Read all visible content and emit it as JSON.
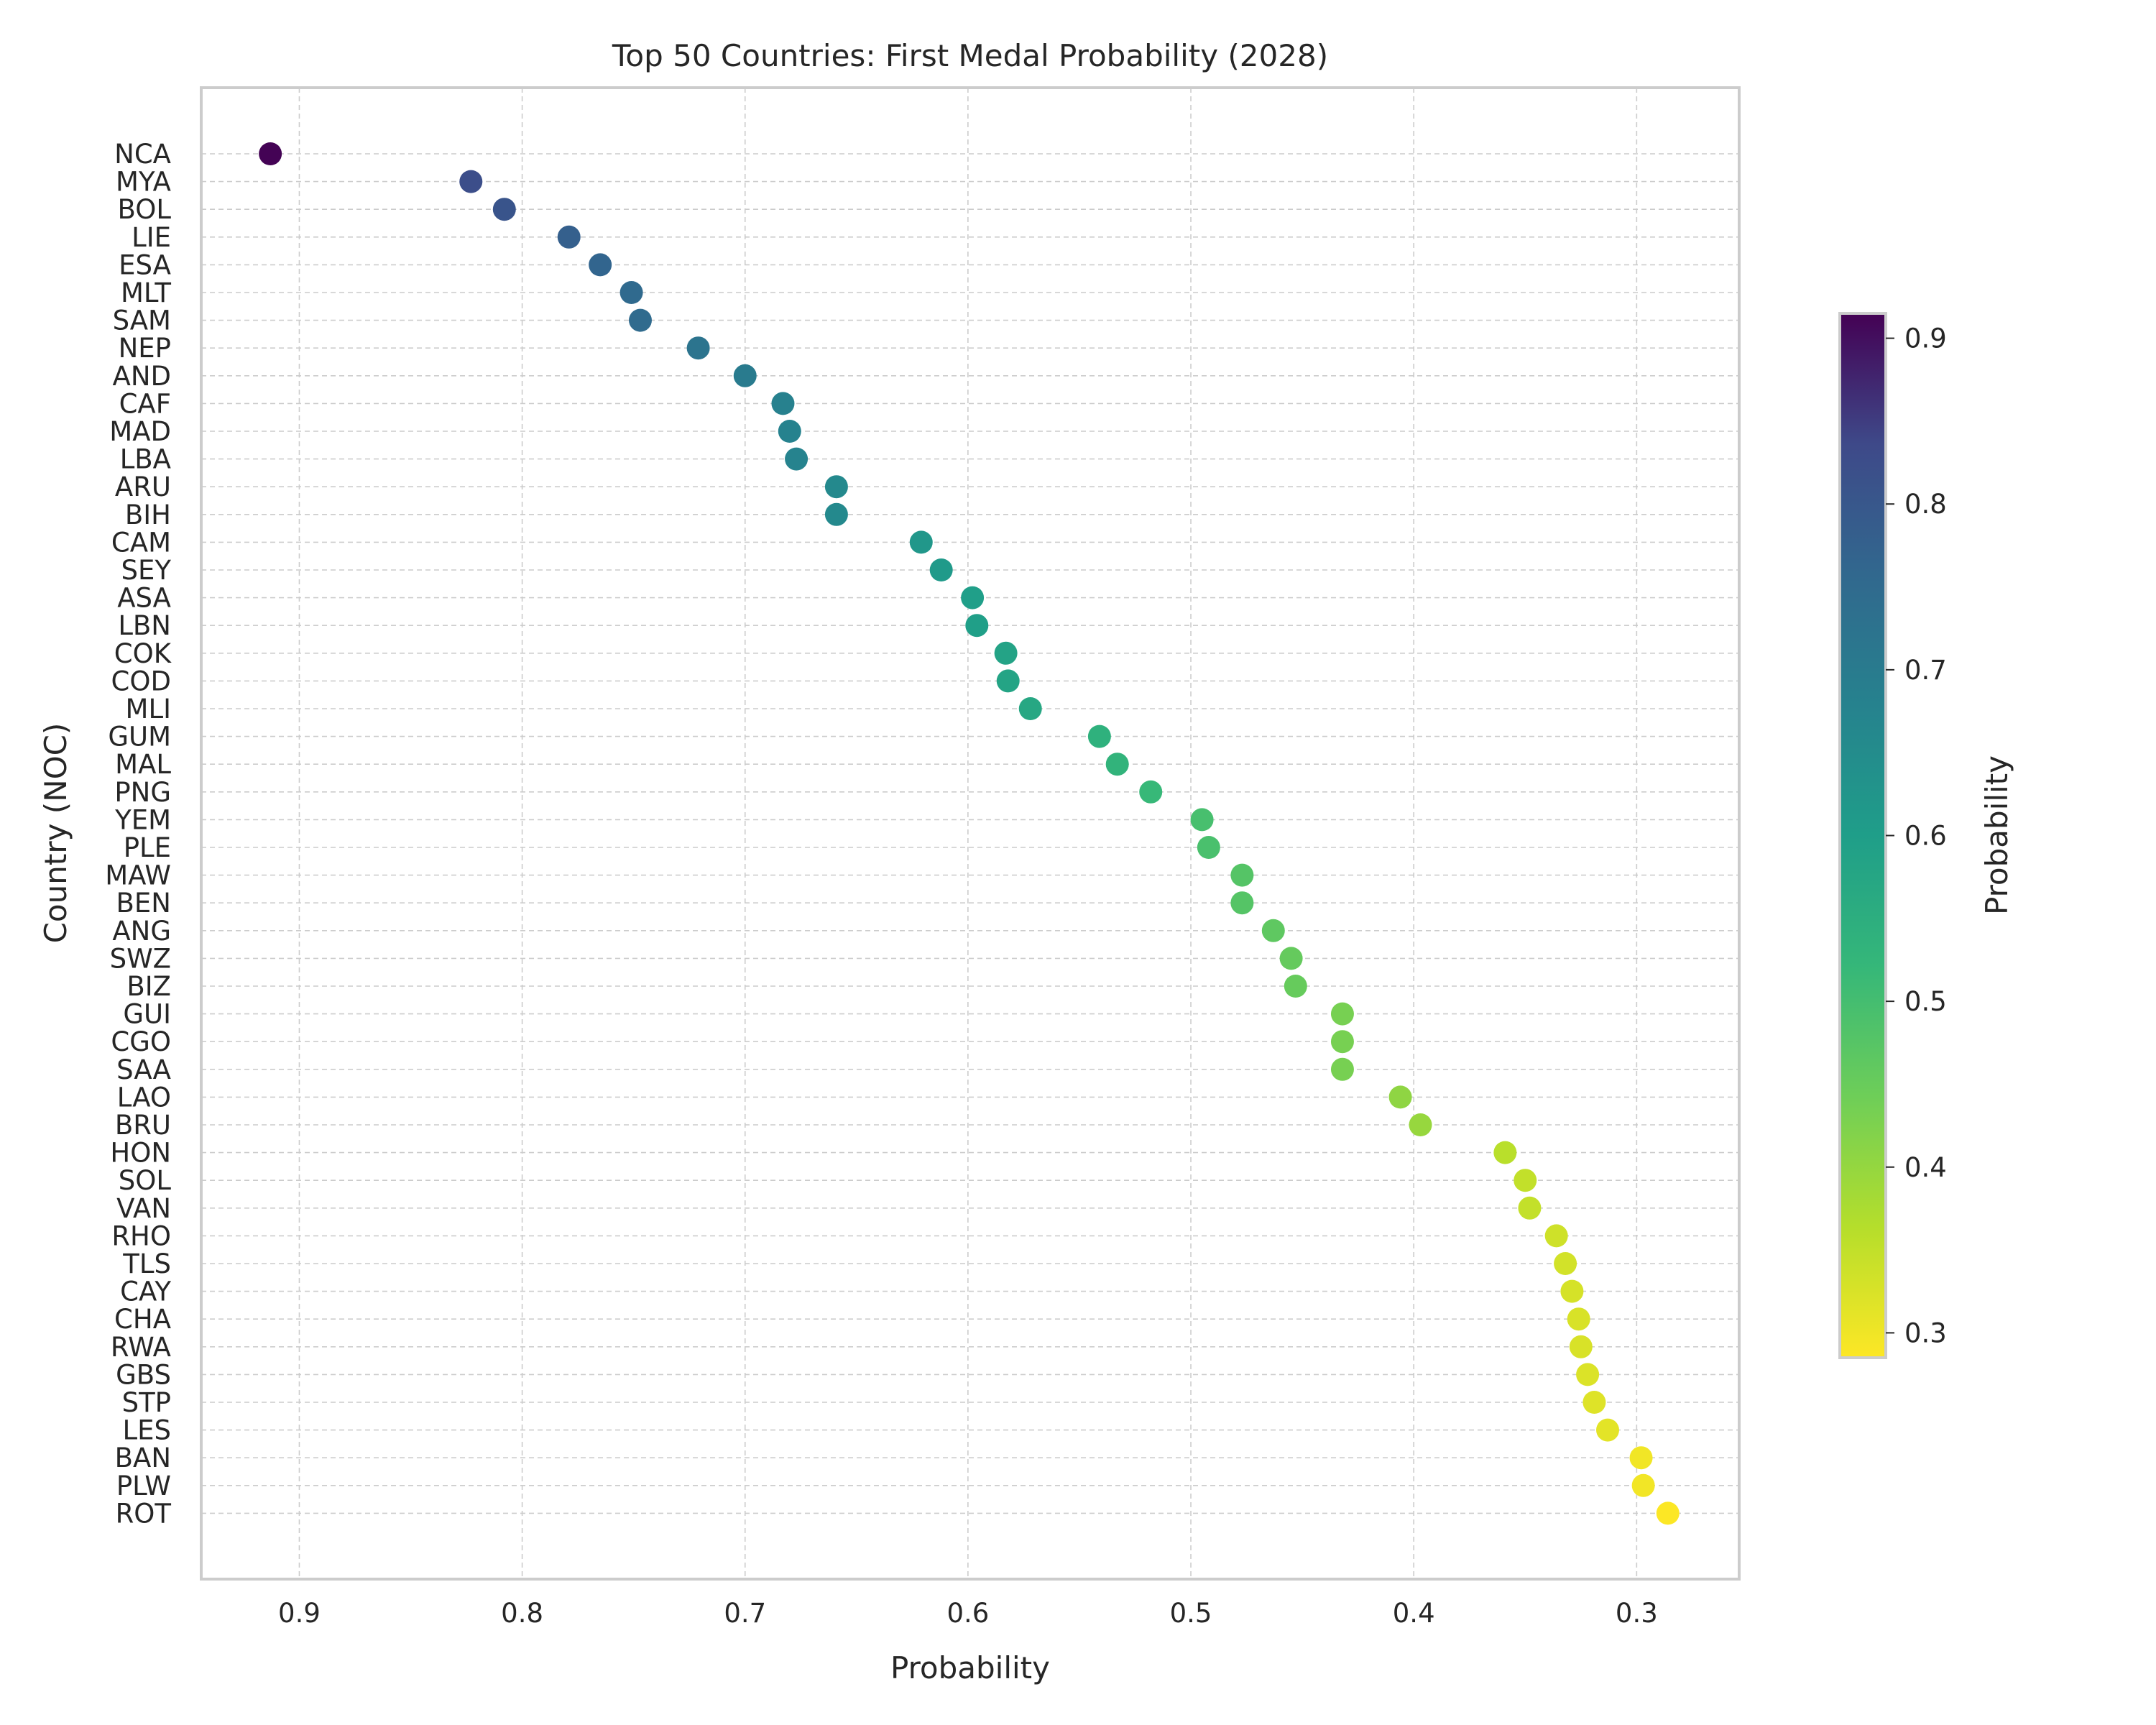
{
  "chart_data": {
    "type": "scatter",
    "title": "Top 50 Countries: First Medal Probability (2028)",
    "xlabel": "Probability",
    "ylabel": "Country (NOC)",
    "xlim": [
      0.944,
      0.254
    ],
    "x_inverted": true,
    "xticks": [
      "0.9",
      "0.8",
      "0.7",
      "0.6",
      "0.5",
      "0.4",
      "0.3"
    ],
    "grid": true,
    "colormap": "viridis",
    "colorbar": {
      "label": "Probability",
      "range": [
        0.285,
        0.915
      ],
      "ticks": [
        "0.9",
        "0.8",
        "0.7",
        "0.6",
        "0.5",
        "0.4",
        "0.3"
      ]
    },
    "categories": [
      "NCA",
      "MYA",
      "BOL",
      "LIE",
      "ESA",
      "MLT",
      "SAM",
      "NEP",
      "AND",
      "CAF",
      "MAD",
      "LBA",
      "ARU",
      "BIH",
      "CAM",
      "SEY",
      "ASA",
      "LBN",
      "COK",
      "COD",
      "MLI",
      "GUM",
      "MAL",
      "PNG",
      "YEM",
      "PLE",
      "MAW",
      "BEN",
      "ANG",
      "SWZ",
      "BIZ",
      "GUI",
      "CGO",
      "SAA",
      "LAO",
      "BRU",
      "HON",
      "SOL",
      "VAN",
      "RHO",
      "TLS",
      "CAY",
      "CHA",
      "RWA",
      "GBS",
      "STP",
      "LES",
      "BAN",
      "PLW",
      "ROT"
    ],
    "values": [
      0.913,
      0.823,
      0.808,
      0.779,
      0.765,
      0.751,
      0.747,
      0.721,
      0.7,
      0.683,
      0.68,
      0.677,
      0.659,
      0.659,
      0.621,
      0.612,
      0.598,
      0.596,
      0.583,
      0.582,
      0.572,
      0.541,
      0.533,
      0.518,
      0.495,
      0.492,
      0.477,
      0.477,
      0.463,
      0.455,
      0.453,
      0.432,
      0.432,
      0.432,
      0.406,
      0.397,
      0.359,
      0.35,
      0.348,
      0.336,
      0.332,
      0.329,
      0.326,
      0.325,
      0.322,
      0.319,
      0.313,
      0.298,
      0.297,
      0.286
    ]
  }
}
